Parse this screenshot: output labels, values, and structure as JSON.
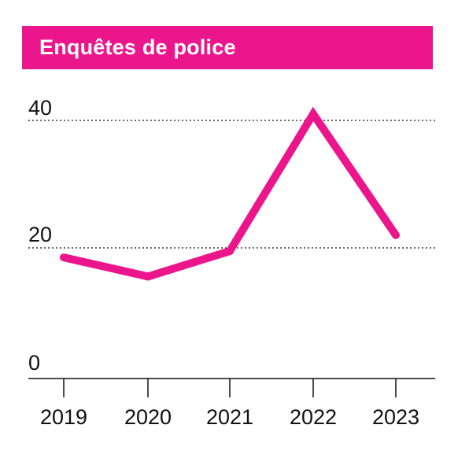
{
  "colors": {
    "accent": "#ec168c",
    "axis": "#111111",
    "grid": "#111111"
  },
  "chart_data": {
    "type": "line",
    "title": "Enquêtes de police",
    "xlabel": "",
    "ylabel": "",
    "categories": [
      "2019",
      "2020",
      "2021",
      "2022",
      "2023"
    ],
    "series": [
      {
        "values": [
          18.5,
          15.5,
          19.5,
          41,
          22
        ]
      }
    ],
    "ylim": [
      0,
      40
    ],
    "yticks": [
      "0",
      "20",
      "40"
    ],
    "grid": "dotted horizontal at 20 and 40",
    "legend": "none"
  }
}
